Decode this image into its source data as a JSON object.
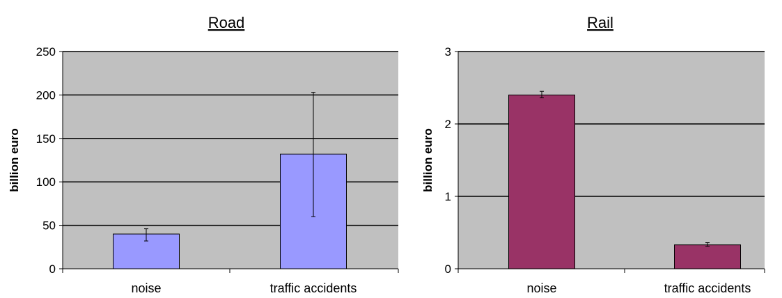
{
  "chart_data": [
    {
      "type": "bar",
      "title": "Road",
      "ylabel": "billion euro",
      "xlabel": "",
      "ylim": [
        0,
        250
      ],
      "yticks": [
        0,
        50,
        100,
        150,
        200,
        250
      ],
      "grid": true,
      "categories": [
        "noise",
        "traffic accidents"
      ],
      "values": [
        40,
        132
      ],
      "error_low": [
        32,
        60
      ],
      "error_high": [
        46,
        203
      ],
      "bar_color": "#9999ff",
      "plot_bg": "#c0c0c0"
    },
    {
      "type": "bar",
      "title": "Rail",
      "ylabel": "billion euro",
      "xlabel": "",
      "ylim": [
        0,
        3
      ],
      "yticks": [
        0,
        1,
        2,
        3
      ],
      "grid": true,
      "categories": [
        "noise",
        "traffic accidents"
      ],
      "values": [
        2.4,
        0.33
      ],
      "error_low": [
        2.36,
        0.31
      ],
      "error_high": [
        2.45,
        0.36
      ],
      "bar_color": "#993366",
      "plot_bg": "#c0c0c0"
    }
  ]
}
